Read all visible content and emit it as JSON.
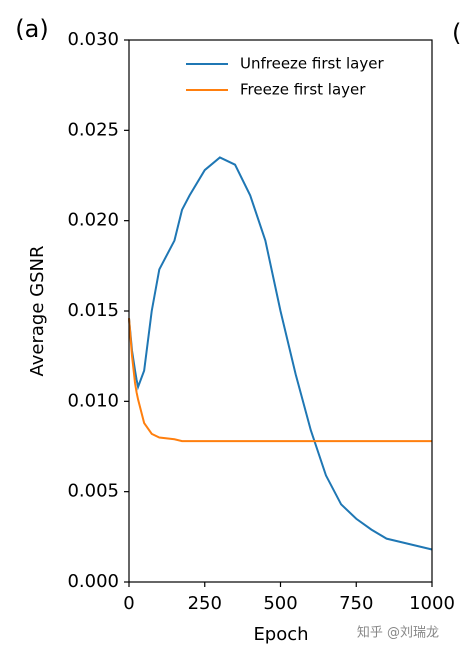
{
  "chart_data": {
    "type": "line",
    "panel_label": "(a)",
    "next_panel_label": "(",
    "watermark": "知乎 @刘瑞龙",
    "xlabel": "Epoch",
    "ylabel": "Average GSNR",
    "x": [
      0,
      10,
      20,
      25,
      30,
      50,
      75,
      100,
      150,
      175,
      200,
      250,
      300,
      350,
      400,
      450,
      500,
      550,
      600,
      650,
      700,
      750,
      800,
      850,
      900,
      950,
      1000
    ],
    "series": [
      {
        "name": "Unfreeze first layer",
        "color": "#1f77b4",
        "values": [
          0.0146,
          0.0128,
          0.0117,
          0.0112,
          0.0108,
          0.0117,
          0.015,
          0.0173,
          0.0189,
          0.0206,
          0.0214,
          0.0228,
          0.0235,
          0.0231,
          0.0214,
          0.0189,
          0.015,
          0.0115,
          0.0084,
          0.0059,
          0.0043,
          0.0035,
          0.0029,
          0.0024,
          0.0022,
          0.002,
          0.0018
        ]
      },
      {
        "name": "Freeze first layer",
        "color": "#ff7f0e",
        "values": [
          0.0146,
          0.0125,
          0.011,
          0.0105,
          0.0101,
          0.0088,
          0.0082,
          0.008,
          0.0079,
          0.0078,
          0.0078,
          0.0078,
          0.0078,
          0.0078,
          0.0078,
          0.0078,
          0.0078,
          0.0078,
          0.0078,
          0.0078,
          0.0078,
          0.0078,
          0.0078,
          0.0078,
          0.0078,
          0.0078,
          0.0078
        ]
      }
    ],
    "xlim": [
      0,
      1000
    ],
    "xticks": [
      0,
      250,
      500,
      750,
      1000
    ],
    "ylim": [
      0,
      0.03
    ],
    "yticks": [
      {
        "value": 0,
        "label": "0.000"
      },
      0.005,
      {
        "value": 0.01,
        "label": "0.010"
      },
      0.015,
      {
        "value": 0.02,
        "label": "0.020"
      },
      0.025,
      {
        "value": 0.03,
        "label": "0.030"
      }
    ],
    "legend": "upper right",
    "grid": false
  }
}
